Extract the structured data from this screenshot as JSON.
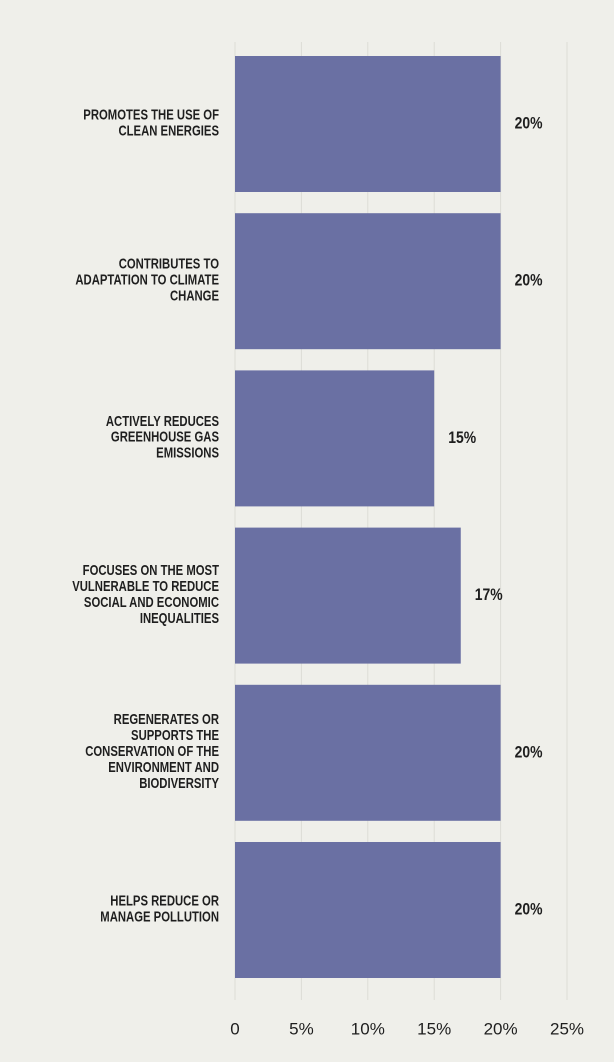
{
  "chart_data": {
    "type": "bar",
    "orientation": "horizontal",
    "categories": [
      "PROMOTES THE USE OF\nCLEAN ENERGIES",
      "CONTRIBUTES TO\nADAPTATION TO CLIMATE\nCHANGE",
      "ACTIVELY REDUCES\nGREENHOUSE GAS\nEMISSIONS",
      "FOCUSES ON THE MOST\nVULNERABLE TO REDUCE\nSOCIAL AND ECONOMIC\nINEQUALITIES",
      "REGENERATES OR\nSUPPORTS THE\nCONSERVATION OF THE\nENVIRONMENT AND\nBIODIVERSITY",
      "HELPS REDUCE OR\nMANAGE POLLUTION"
    ],
    "values": [
      20,
      20,
      15,
      17,
      20,
      20
    ],
    "value_labels": [
      "20%",
      "20%",
      "15%",
      "17%",
      "20%",
      "20%"
    ],
    "color": "#6a70a3",
    "xlim": [
      0,
      25
    ],
    "xticks": [
      0,
      {
        "value": 5,
        "label": "5%"
      },
      {
        "value": 10,
        "label": "10%"
      },
      {
        "value": 15,
        "label": "15%"
      },
      {
        "value": 20,
        "label": "20%"
      },
      {
        "value": 25,
        "label": "25%"
      }
    ],
    "grid": true
  }
}
